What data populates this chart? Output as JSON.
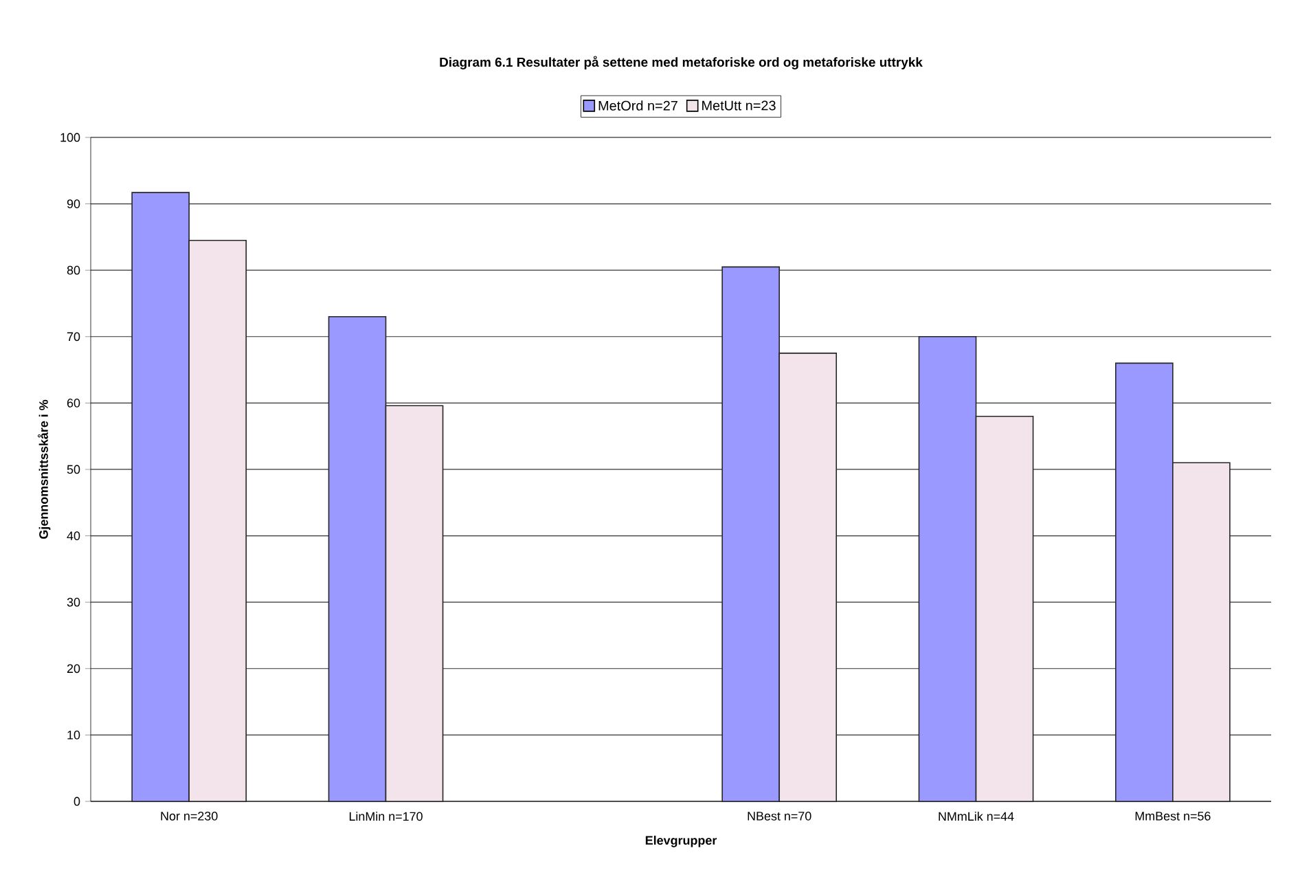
{
  "chart_data": {
    "type": "bar",
    "title": "Diagram 6.1 Resultater på settene med metaforiske ord og metaforiske uttrykk",
    "xlabel": "Elevgrupper",
    "ylabel": "Gjennomsnittsskåre i %",
    "categories": [
      "Nor n=230",
      "LinMin n=170",
      null,
      "NBest n=70",
      "NMmLik n=44",
      "MmBest n=56"
    ],
    "series": [
      {
        "name": "MetOrd n=27",
        "color": "#9999ff",
        "values": [
          91.7,
          73,
          null,
          80.5,
          70,
          66
        ]
      },
      {
        "name": "MetUtt n=23",
        "color": "#f3e3ea",
        "values": [
          84.5,
          59.6,
          null,
          67.5,
          58,
          51
        ]
      }
    ],
    "ylim": [
      0,
      100
    ],
    "yticks": [
      0,
      10,
      20,
      30,
      40,
      50,
      60,
      70,
      80,
      90,
      100
    ],
    "grid": "y",
    "legend": "top"
  }
}
